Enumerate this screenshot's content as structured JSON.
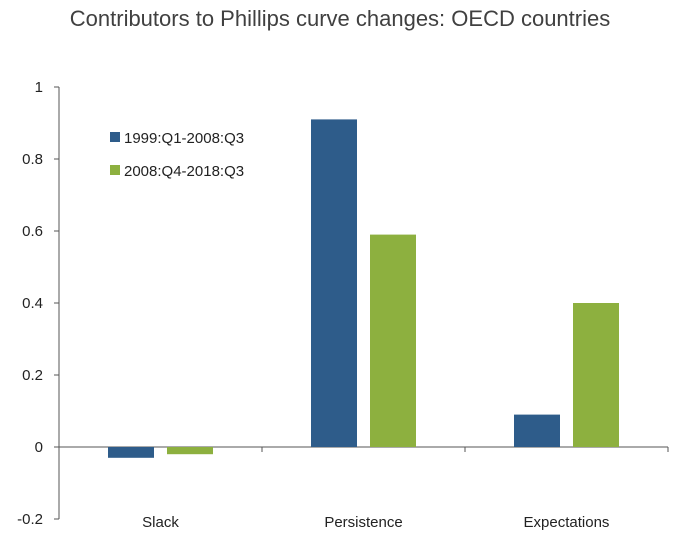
{
  "chart_data": {
    "type": "bar",
    "title": "Contributors to Phillips curve changes: OECD countries",
    "categories": [
      "Slack",
      "Persistence",
      "Expectations"
    ],
    "series": [
      {
        "name": "1999:Q1-2008:Q3",
        "values": [
          -0.03,
          0.91,
          0.09
        ],
        "color": "#2e5c8a"
      },
      {
        "name": "2008:Q4-2018:Q3",
        "values": [
          -0.02,
          0.59,
          0.4
        ],
        "color": "#8db03f"
      }
    ],
    "ylim": [
      -0.2,
      1
    ],
    "yticks": [
      -0.2,
      0,
      0.2,
      0.4,
      0.6,
      0.8,
      1
    ],
    "ytick_labels": [
      "-0.2",
      "0",
      "0.2",
      "0.4",
      "0.6",
      "0.8",
      "1"
    ],
    "grid": false,
    "legend_position": "top-left"
  }
}
